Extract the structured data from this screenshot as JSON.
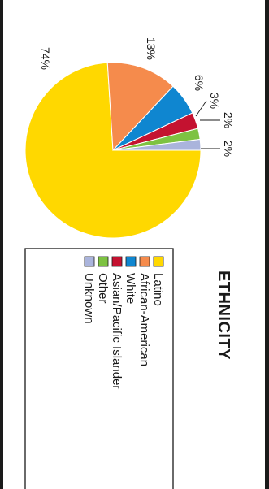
{
  "chart_data": {
    "type": "pie",
    "title": "ETHNICITY",
    "categories": [
      "Latino",
      "African-American",
      "White",
      "Asian/Pacific Islander",
      "Other",
      "Unknown"
    ],
    "values": [
      74,
      13,
      6,
      3,
      2,
      2
    ],
    "labels": [
      "74%",
      "13%",
      "6%",
      "3%",
      "2%",
      "2%"
    ],
    "colors": [
      "#ffd800",
      "#f58b4c",
      "#0f86d0",
      "#c41230",
      "#7dc242",
      "#aab4dc"
    ],
    "legend_position": "bottom"
  }
}
